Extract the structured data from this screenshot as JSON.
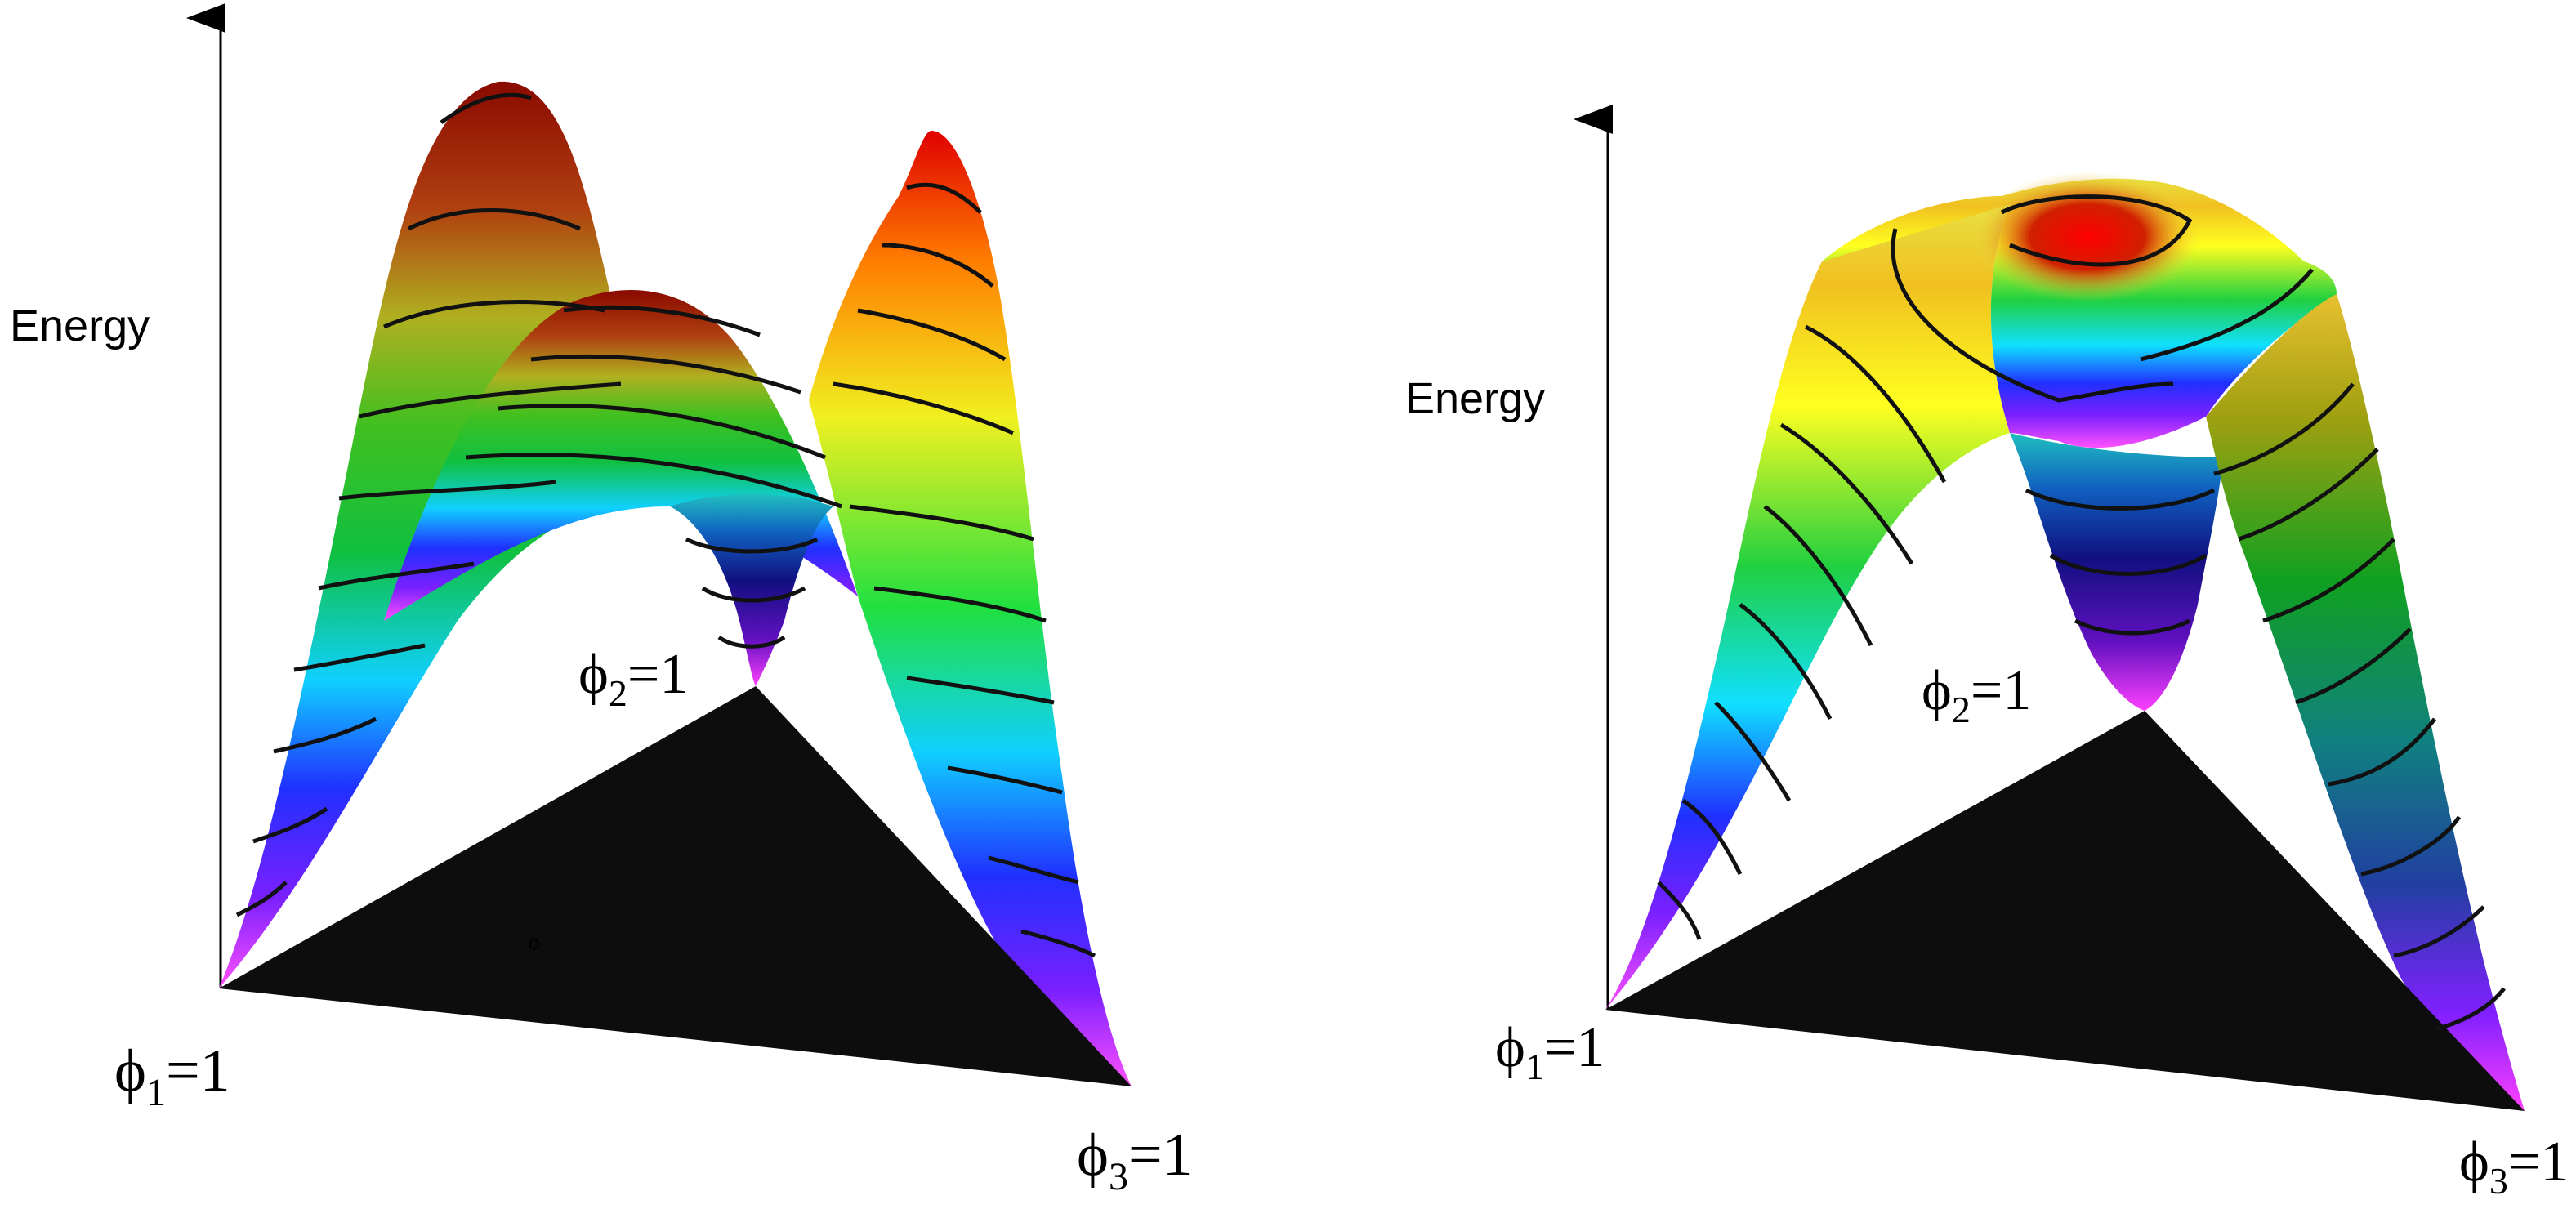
{
  "panels": [
    {
      "id": "left",
      "axis_label": "Energy",
      "vertex_labels": [
        {
          "symbol": "ϕ",
          "sub": "1",
          "eq": "=1"
        },
        {
          "symbol": "ϕ",
          "sub": "2",
          "eq": "=1"
        },
        {
          "symbol": "ϕ",
          "sub": "3",
          "eq": "=1"
        }
      ],
      "stray_mark": "ϕ",
      "surface": "three-peaked energy landscape with a central saddle ridge, contour lines"
    },
    {
      "id": "right",
      "axis_label": "Energy",
      "vertex_labels": [
        {
          "symbol": "ϕ",
          "sub": "1",
          "eq": "=1"
        },
        {
          "symbol": "ϕ",
          "sub": "2",
          "eq": "=1"
        },
        {
          "symbol": "ϕ",
          "sub": "3",
          "eq": "=1"
        }
      ],
      "surface": "single central maximum energy landscape with contour lines"
    }
  ],
  "colors": {
    "background": "#ffffff",
    "triangle": "#0d0d0d",
    "contour": "#111111",
    "low": "#ff40ff",
    "mid_low": "#2040ff",
    "mid": "#00c040",
    "mid_high": "#ffff20",
    "high": "#b01000"
  }
}
